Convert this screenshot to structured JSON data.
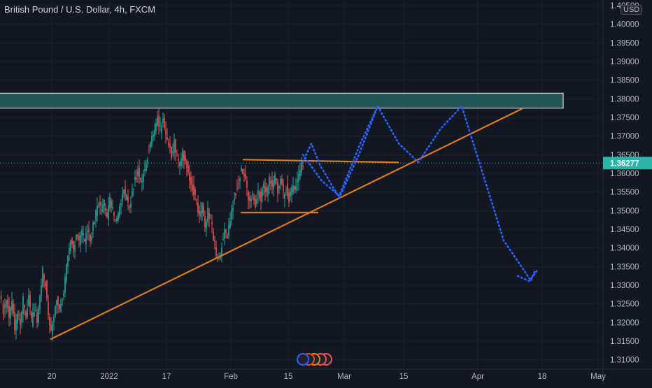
{
  "chart_data": {
    "type": "candlestick",
    "title": "British Pound / U.S. Dollar, 4h, FXCM",
    "currency": "USD",
    "current_price": "1.36277",
    "y_ticks": [
      "1.31000",
      "1.31500",
      "1.32000",
      "1.32500",
      "1.33000",
      "1.33500",
      "1.34000",
      "1.34500",
      "1.35000",
      "1.35500",
      "1.36000",
      "1.36500",
      "1.37000",
      "1.37500",
      "1.38000",
      "1.38500",
      "1.39000",
      "1.39500",
      "1.40000",
      "1.40500"
    ],
    "x_ticks": [
      "20",
      "2022",
      "17",
      "Feb",
      "15",
      "Mar",
      "15",
      "Apr",
      "18",
      "May"
    ],
    "ylim": [
      1.3075,
      1.4065
    ],
    "series_close_path": [
      [
        0,
        1.328
      ],
      [
        6,
        1.323
      ],
      [
        10,
        1.326
      ],
      [
        14,
        1.322
      ],
      [
        18,
        1.325
      ],
      [
        22,
        1.318
      ],
      [
        26,
        1.323
      ],
      [
        30,
        1.32
      ],
      [
        34,
        1.326
      ],
      [
        38,
        1.322
      ],
      [
        42,
        1.327
      ],
      [
        46,
        1.32
      ],
      [
        50,
        1.324
      ],
      [
        54,
        1.321
      ],
      [
        58,
        1.326
      ],
      [
        62,
        1.334
      ],
      [
        66,
        1.33
      ],
      [
        70,
        1.322
      ],
      [
        74,
        1.318
      ],
      [
        78,
        1.322
      ],
      [
        82,
        1.326
      ],
      [
        86,
        1.323
      ],
      [
        90,
        1.327
      ],
      [
        94,
        1.331
      ],
      [
        98,
        1.338
      ],
      [
        102,
        1.342
      ],
      [
        106,
        1.34
      ],
      [
        110,
        1.344
      ],
      [
        114,
        1.341
      ],
      [
        118,
        1.344
      ],
      [
        122,
        1.342
      ],
      [
        126,
        1.345
      ],
      [
        130,
        1.342
      ],
      [
        134,
        1.346
      ],
      [
        138,
        1.349
      ],
      [
        142,
        1.352
      ],
      [
        146,
        1.35
      ],
      [
        150,
        1.352
      ],
      [
        154,
        1.348
      ],
      [
        158,
        1.353
      ],
      [
        162,
        1.35
      ],
      [
        166,
        1.347
      ],
      [
        170,
        1.349
      ],
      [
        174,
        1.352
      ],
      [
        178,
        1.355
      ],
      [
        182,
        1.353
      ],
      [
        186,
        1.35
      ],
      [
        190,
        1.356
      ],
      [
        194,
        1.358
      ],
      [
        198,
        1.361
      ],
      [
        202,
        1.357
      ],
      [
        206,
        1.36
      ],
      [
        210,
        1.363
      ],
      [
        214,
        1.366
      ],
      [
        218,
        1.369
      ],
      [
        222,
        1.372
      ],
      [
        226,
        1.375
      ],
      [
        230,
        1.372
      ],
      [
        234,
        1.374
      ],
      [
        238,
        1.37
      ],
      [
        242,
        1.367
      ],
      [
        246,
        1.365
      ],
      [
        250,
        1.368
      ],
      [
        254,
        1.364
      ],
      [
        258,
        1.362
      ],
      [
        262,
        1.366
      ],
      [
        266,
        1.363
      ],
      [
        270,
        1.36
      ],
      [
        274,
        1.357
      ],
      [
        278,
        1.355
      ],
      [
        282,
        1.352
      ],
      [
        286,
        1.349
      ],
      [
        290,
        1.351
      ],
      [
        294,
        1.346
      ],
      [
        298,
        1.35
      ],
      [
        302,
        1.348
      ],
      [
        306,
        1.343
      ],
      [
        310,
        1.338
      ],
      [
        314,
        1.337
      ],
      [
        318,
        1.341
      ],
      [
        322,
        1.345
      ],
      [
        326,
        1.343
      ],
      [
        330,
        1.348
      ],
      [
        334,
        1.352
      ],
      [
        338,
        1.355
      ],
      [
        342,
        1.358
      ],
      [
        346,
        1.361
      ],
      [
        350,
        1.36
      ],
      [
        354,
        1.356
      ],
      [
        358,
        1.352
      ],
      [
        362,
        1.355
      ],
      [
        366,
        1.352
      ],
      [
        370,
        1.356
      ],
      [
        374,
        1.353
      ],
      [
        378,
        1.357
      ],
      [
        382,
        1.355
      ],
      [
        386,
        1.358
      ],
      [
        390,
        1.356
      ],
      [
        394,
        1.359
      ],
      [
        398,
        1.355
      ],
      [
        402,
        1.358
      ],
      [
        406,
        1.354
      ],
      [
        410,
        1.357
      ],
      [
        414,
        1.353
      ],
      [
        418,
        1.356
      ],
      [
        422,
        1.355
      ],
      [
        426,
        1.358
      ],
      [
        430,
        1.361
      ],
      [
        434,
        1.3627
      ]
    ],
    "resistance_zone": {
      "top": 1.3815,
      "bottom": 1.3775
    },
    "trendline_start": {
      "date": "Jan 20",
      "price": 1.3155
    },
    "trendline_end": {
      "date": "Apr 14",
      "price": 1.3775
    },
    "upper_range_line": 1.3635,
    "lower_range_line": 1.3495,
    "projection_path": [
      [
        433,
        1.363
      ],
      [
        445,
        1.368
      ],
      [
        458,
        1.362
      ],
      [
        485,
        1.3535
      ],
      [
        513,
        1.365
      ],
      [
        540,
        1.378
      ],
      [
        570,
        1.368
      ],
      [
        598,
        1.363
      ],
      [
        630,
        1.372
      ],
      [
        660,
        1.378
      ],
      [
        690,
        1.36
      ],
      [
        720,
        1.342
      ],
      [
        758,
        1.3315
      ],
      [
        768,
        1.334
      ]
    ],
    "projection_path_alt": [
      [
        433,
        1.365
      ],
      [
        460,
        1.358
      ],
      [
        485,
        1.354
      ],
      [
        515,
        1.368
      ],
      [
        540,
        1.378
      ]
    ],
    "colors": {
      "bull": "#26a69a",
      "bear": "#ef5350",
      "trend": "#e07b1a",
      "projection": "#2962ff",
      "zone": "#2a6b6a",
      "price_label": "#2ab3a6"
    }
  }
}
